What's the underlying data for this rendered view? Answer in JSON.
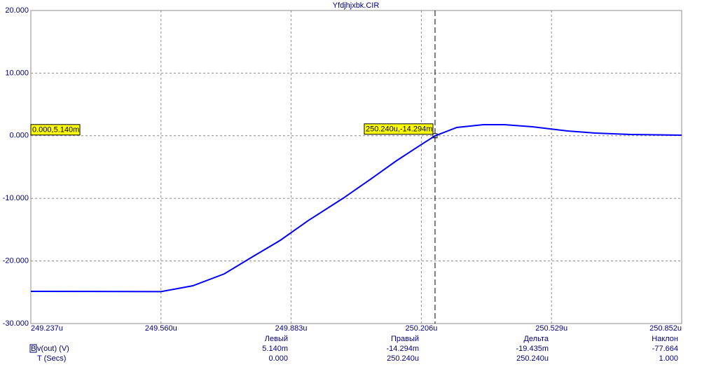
{
  "chart_data": {
    "type": "line",
    "title": "Yfdjhjxbk.CIR",
    "x": [
      249.237,
      249.56,
      249.639,
      249.717,
      249.786,
      249.856,
      249.925,
      250.012,
      250.082,
      250.143,
      250.204,
      250.24,
      250.294,
      250.36,
      250.412,
      250.482,
      250.569,
      250.638,
      250.725,
      250.852
    ],
    "series": [
      {
        "name": "v(out) (V)",
        "color": "#0000ff",
        "values": [
          -24.85,
          -24.9,
          -23.96,
          -22.06,
          -19.37,
          -16.7,
          -13.56,
          -9.98,
          -6.85,
          -4.05,
          -1.48,
          -0.014,
          1.32,
          1.77,
          1.77,
          1.43,
          0.76,
          0.43,
          0.2,
          0.09
        ]
      }
    ],
    "xlim": [
      249.237,
      250.852
    ],
    "ylim": [
      -30,
      20
    ],
    "xticks": [
      {
        "value": 249.237,
        "label": "249.237u"
      },
      {
        "value": 249.56,
        "label": "249.560u"
      },
      {
        "value": 249.883,
        "label": "249.883u"
      },
      {
        "value": 250.206,
        "label": "250.206u"
      },
      {
        "value": 250.529,
        "label": "250.529u"
      },
      {
        "value": 250.852,
        "label": "250.852u"
      }
    ],
    "yticks": [
      {
        "value": -30,
        "label": "-30.000"
      },
      {
        "value": -20,
        "label": "-20.000"
      },
      {
        "value": -10,
        "label": "-10.000"
      },
      {
        "value": 0,
        "label": "0.000"
      },
      {
        "value": 10,
        "label": "10.000"
      },
      {
        "value": 20,
        "label": "20.000"
      }
    ],
    "grid": true,
    "cursor": {
      "x": 250.24,
      "label": "250.240u,-14.294m"
    },
    "left_cursor_label": "0.000,5.140m"
  },
  "cursor_table": {
    "headers": [
      "Левый",
      "Правый",
      "Дельта",
      "Наклон"
    ],
    "rows": [
      {
        "icon": "B",
        "name": "v(out) (V)",
        "cells": [
          "5.140m",
          "-14.294m",
          "-19.435m",
          "-77.664"
        ]
      },
      {
        "name": "T (Secs)",
        "cells": [
          "0.000",
          "250.240u",
          "250.240u",
          "1.000"
        ]
      }
    ]
  }
}
